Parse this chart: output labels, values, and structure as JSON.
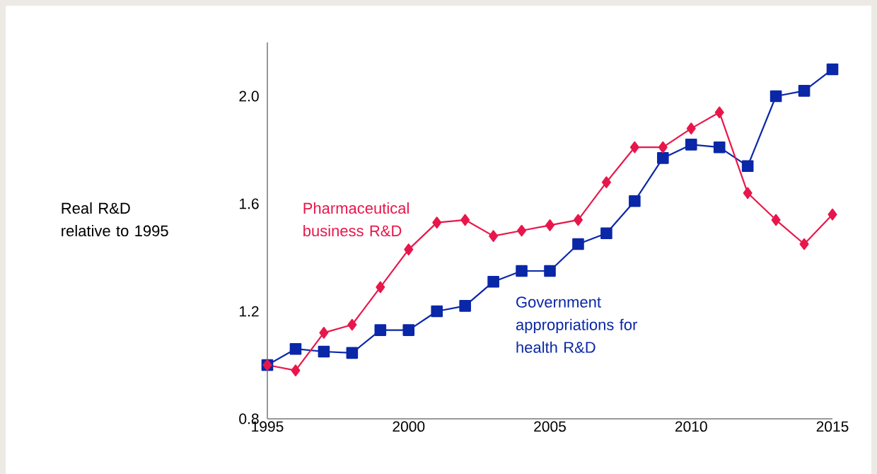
{
  "chart_data": {
    "type": "line",
    "ylabel": "Real R&D relative to 1995",
    "x": [
      1995,
      1996,
      1997,
      1998,
      1999,
      2000,
      2001,
      2002,
      2003,
      2004,
      2005,
      2006,
      2007,
      2008,
      2009,
      2010,
      2011,
      2012,
      2013,
      2014,
      2015
    ],
    "series": [
      {
        "name": "Pharmaceutical business R&D",
        "color": "#e8174b",
        "marker": "diamond",
        "values": [
          1.0,
          0.98,
          1.12,
          1.15,
          1.29,
          1.43,
          1.53,
          1.54,
          1.48,
          1.5,
          1.52,
          1.54,
          1.68,
          1.81,
          1.81,
          1.88,
          1.94,
          1.64,
          1.54,
          1.45,
          1.56
        ]
      },
      {
        "name": "Government appropriations for health R&D",
        "color": "#0a27a8",
        "marker": "square",
        "values": [
          1.0,
          1.06,
          1.05,
          1.045,
          1.13,
          1.13,
          1.2,
          1.22,
          1.31,
          1.35,
          1.35,
          1.45,
          1.49,
          1.61,
          1.77,
          1.82,
          1.81,
          1.74,
          2.0,
          2.02,
          2.1
        ]
      }
    ],
    "xlim": [
      1995,
      2015
    ],
    "ylim": [
      0.8,
      2.2
    ],
    "xticks": [
      1995,
      2000,
      2005,
      2010,
      2015
    ],
    "yticks": [
      0.8,
      1.2,
      1.6,
      {
        "value": 2.0,
        "label": "2.0"
      }
    ],
    "grid": false,
    "legend": false,
    "line_style": "solid"
  }
}
